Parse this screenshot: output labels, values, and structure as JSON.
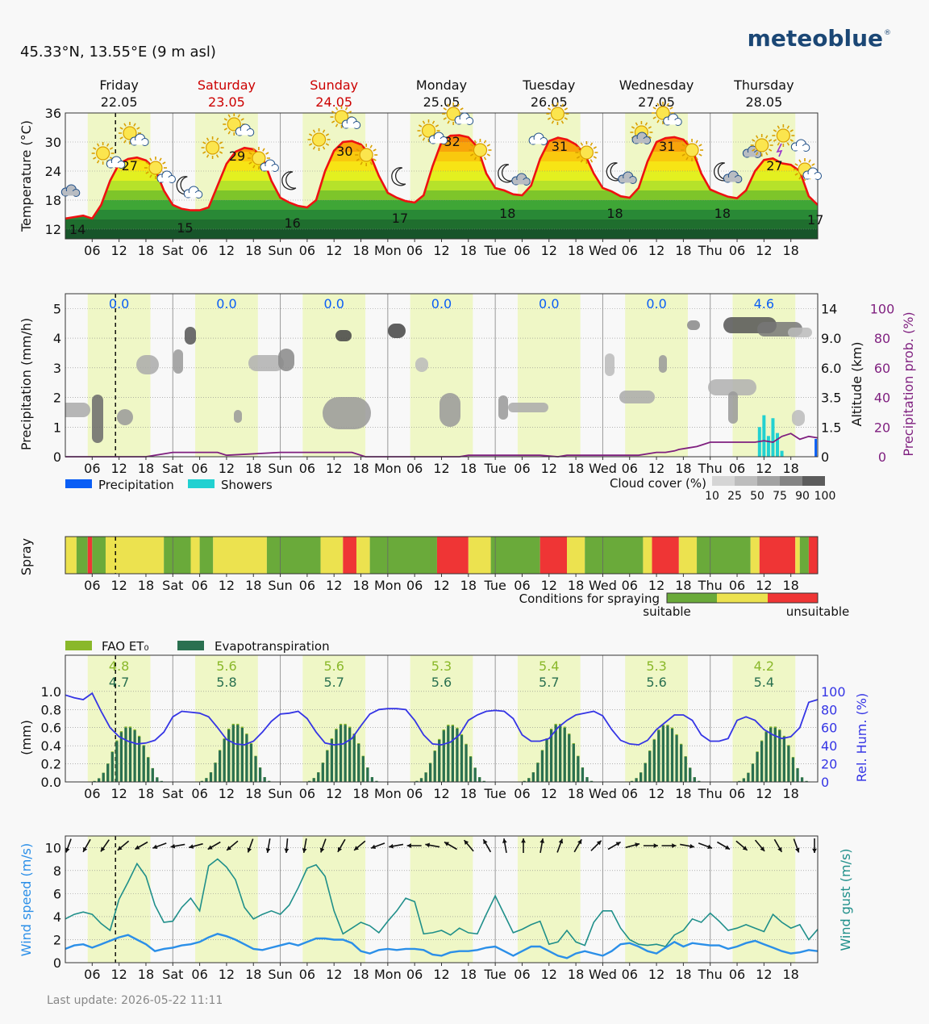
{
  "header": {
    "location": "45.33°N, 13.55°E (9 m asl)",
    "brand": "meteoblue",
    "brand_mark": "®",
    "footer": "Last update: 2026-05-22 11:11"
  },
  "colors": {
    "background": "#f8f8f8",
    "daylight": "#eff7c6",
    "weekend_red": "#cc0000",
    "temperature_line": "#ee1111",
    "precip_prob": "#7f1f7f",
    "precipitation": "#0a5ef5",
    "showers": "#22d1d1",
    "spray_suitable": "#6aaa3a",
    "spray_marginal": "#ece24f",
    "spray_unsuitable": "#ef3535",
    "fao": "#8ab82a",
    "evapo": "#2a7050",
    "humidity": "#3535e5",
    "wind_speed": "#2b8fe8",
    "wind_gust": "#1f8f8a",
    "brand": "#1b4775"
  },
  "chart_data": [
    {
      "type": "line",
      "id": "temperature",
      "ylabel": "Temperature (°C)",
      "ylim": [
        10,
        36
      ],
      "y_ticks": [
        "12",
        "18",
        "24",
        "30",
        "36"
      ],
      "x_ticks": [
        "06",
        "12",
        "18",
        "Sat",
        "06",
        "12",
        "18",
        "Sun",
        "06",
        "12",
        "18",
        "Mon",
        "06",
        "12",
        "18",
        "Tue",
        "06",
        "12",
        "18",
        "Wed",
        "06",
        "12",
        "18",
        "Thu",
        "06",
        "12",
        "18"
      ],
      "days": [
        {
          "name": "Friday",
          "date": "22.05",
          "weekend": false,
          "max": "27",
          "min": "14"
        },
        {
          "name": "Saturday",
          "date": "23.05",
          "weekend": true,
          "max": "29",
          "min": "15"
        },
        {
          "name": "Sunday",
          "date": "24.05",
          "weekend": true,
          "max": "30",
          "min": "16"
        },
        {
          "name": "Monday",
          "date": "25.05",
          "weekend": false,
          "max": "32",
          "min": "17"
        },
        {
          "name": "Tuesday",
          "date": "26.05",
          "weekend": false,
          "max": "31",
          "min": "18"
        },
        {
          "name": "Wednesday",
          "date": "27.05",
          "weekend": false,
          "max": "31",
          "min": "18"
        },
        {
          "name": "Thursday",
          "date": "28.05",
          "weekend": false,
          "max": "27",
          "min": "18"
        }
      ],
      "last_min": "17",
      "x_hours": [
        0,
        2,
        4,
        6,
        8,
        10,
        12,
        14,
        16,
        18,
        20,
        22,
        24,
        26,
        28,
        30,
        32,
        34,
        36,
        38,
        40,
        42,
        44,
        46,
        48,
        50,
        52,
        54,
        56,
        58,
        60,
        62,
        64,
        66,
        68,
        70,
        72,
        74,
        76,
        78,
        80,
        82,
        84,
        86,
        88,
        90,
        92,
        94,
        96,
        98,
        100,
        102,
        104,
        106,
        108,
        110,
        112,
        114,
        116,
        118,
        120,
        122,
        124,
        126,
        128,
        130,
        132,
        134,
        136,
        138,
        140,
        142,
        144,
        146,
        148,
        150,
        152,
        154,
        156,
        158,
        160,
        162,
        164,
        166,
        168
      ],
      "values": [
        14.2,
        14.5,
        14.8,
        14.2,
        17,
        22,
        25.5,
        26.5,
        26.8,
        26.2,
        24.5,
        20,
        17,
        16.2,
        15.9,
        15.9,
        16.5,
        21,
        25.5,
        28,
        28.8,
        28.5,
        27,
        22,
        18.5,
        17.5,
        16.8,
        16.5,
        18,
        24,
        28.2,
        30,
        30.2,
        29.5,
        27.5,
        23,
        19.5,
        18.5,
        17.8,
        17.5,
        19,
        25,
        30,
        31.3,
        31.4,
        31,
        29,
        23.5,
        20.5,
        20,
        19.2,
        19,
        21,
        26.5,
        30.2,
        30.9,
        30.5,
        29.5,
        27.5,
        23.5,
        20.5,
        19.8,
        18.8,
        18.5,
        20.5,
        26,
        30,
        30.8,
        31,
        30.5,
        28.5,
        23.5,
        20.2,
        19.4,
        18.7,
        18.4,
        20,
        24,
        26.3,
        26.6,
        25.6,
        25.3,
        24,
        18.8,
        17
      ]
    },
    {
      "type": "line",
      "id": "precipitation",
      "ylabel": "Precipitation (mm/h)",
      "ylim": [
        0,
        5.5
      ],
      "y_ticks": [
        "0",
        "1",
        "2",
        "3",
        "4",
        "5"
      ],
      "altitude_label": "Altitude (km)",
      "altitude_ticks": [
        "0",
        "1.5",
        "3.5",
        "6.0",
        "9.0",
        "14"
      ],
      "prob_label": "Precipitation prob. (%)",
      "prob_ticks": [
        "0",
        "20",
        "40",
        "60",
        "80",
        "100"
      ],
      "daily_totals": [
        "0.0",
        "0.0",
        "0.0",
        "0.0",
        "0.0",
        "0.0",
        "4.6"
      ],
      "legend_precip": "Precipitation",
      "legend_showers": "Showers",
      "cloud_cover_label": "Cloud cover (%)",
      "cloud_cover_ticks": [
        "10",
        "25",
        "50",
        "75",
        "90",
        "100"
      ],
      "prob_hours": [
        0,
        18,
        24,
        34,
        36,
        48,
        50,
        64,
        67,
        78,
        88,
        90,
        106,
        110,
        112,
        120,
        128,
        132,
        134,
        136,
        137,
        139,
        141,
        142,
        144,
        146,
        148,
        150,
        152,
        154,
        156,
        158,
        160,
        162,
        164,
        166,
        168
      ],
      "prob_values": [
        0,
        0,
        3,
        3,
        1,
        3,
        3,
        3,
        0,
        0,
        0,
        1,
        1,
        0,
        1,
        1,
        1,
        3,
        3,
        4,
        5,
        6,
        7,
        8,
        10,
        10,
        10,
        10,
        10,
        10,
        11,
        10,
        14,
        16,
        12,
        14,
        13
      ],
      "shower_hours": [
        155,
        156,
        157,
        158,
        159,
        160
      ],
      "shower_values": [
        1.0,
        1.4,
        0.7,
        1.3,
        0.8,
        0.2
      ]
    },
    {
      "type": "bar",
      "id": "spray",
      "ylabel": "Spray",
      "caption": "Conditions for spraying",
      "suitable_label": "suitable",
      "unsuitable_label": "unsuitable",
      "segments": [
        [
          0,
          "m"
        ],
        [
          2.5,
          "s"
        ],
        [
          5,
          "u"
        ],
        [
          6,
          "s"
        ],
        [
          9,
          "m"
        ],
        [
          22,
          "s"
        ],
        [
          28,
          "m"
        ],
        [
          30,
          "s"
        ],
        [
          33,
          "m"
        ],
        [
          45,
          "s"
        ],
        [
          57,
          "m"
        ],
        [
          62,
          "u"
        ],
        [
          65,
          "m"
        ],
        [
          68,
          "s"
        ],
        [
          83,
          "u"
        ],
        [
          90,
          "m"
        ],
        [
          95,
          "s"
        ],
        [
          106,
          "u"
        ],
        [
          112,
          "m"
        ],
        [
          116,
          "s"
        ],
        [
          129,
          "m"
        ],
        [
          131,
          "u"
        ],
        [
          137,
          "m"
        ],
        [
          141,
          "s"
        ],
        [
          153,
          "m"
        ],
        [
          155,
          "u"
        ],
        [
          163,
          "m"
        ],
        [
          164,
          "s"
        ],
        [
          166,
          "u"
        ]
      ]
    },
    {
      "type": "bar",
      "id": "evapotranspiration",
      "ylabel": "(mm)",
      "ylim": [
        0,
        1.0
      ],
      "y_ticks": [
        "0.0",
        "0.2",
        "0.4",
        "0.6",
        "0.8",
        "1.0"
      ],
      "humidity_label": "Rel. Hum. (%)",
      "humidity_ticks": [
        "0",
        "20",
        "40",
        "60",
        "80",
        "100"
      ],
      "legend_fao": "FAO ET₀",
      "legend_evapo": "Evapotranspiration",
      "fao_daily": [
        "4.8",
        "5.6",
        "5.6",
        "5.3",
        "5.4",
        "5.3",
        "4.2"
      ],
      "evapo_daily": [
        "4.7",
        "5.8",
        "5.7",
        "5.6",
        "5.7",
        "5.6",
        "5.4"
      ],
      "bar_hourly_profile": [
        0,
        0,
        0,
        0,
        0,
        0,
        0.01,
        0.04,
        0.1,
        0.2,
        0.33,
        0.45,
        0.55,
        0.6,
        0.6,
        0.57,
        0.5,
        0.4,
        0.27,
        0.15,
        0.05,
        0.01,
        0,
        0
      ],
      "day_peaks": [
        0.6,
        0.63,
        0.63,
        0.62,
        0.63,
        0.62,
        0.6
      ],
      "humidity_hours": [
        0,
        2,
        4,
        6,
        8,
        10,
        12,
        14,
        16,
        18,
        20,
        22,
        24,
        26,
        28,
        30,
        32,
        34,
        36,
        38,
        40,
        42,
        44,
        46,
        48,
        50,
        52,
        54,
        56,
        58,
        60,
        62,
        64,
        66,
        68,
        70,
        72,
        74,
        76,
        78,
        80,
        82,
        84,
        86,
        88,
        90,
        92,
        94,
        96,
        98,
        100,
        102,
        104,
        106,
        108,
        110,
        112,
        114,
        116,
        118,
        120,
        122,
        124,
        126,
        128,
        130,
        132,
        134,
        136,
        138,
        140,
        142,
        144,
        146,
        148,
        150,
        152,
        154,
        156,
        158,
        160,
        162,
        164,
        166,
        168
      ],
      "humidity_values": [
        96,
        93,
        91,
        98,
        78,
        60,
        50,
        45,
        42,
        43,
        46,
        55,
        72,
        78,
        77,
        76,
        72,
        60,
        47,
        42,
        41,
        45,
        55,
        67,
        75,
        76,
        78,
        70,
        55,
        43,
        41,
        42,
        48,
        62,
        75,
        80,
        81,
        81,
        80,
        68,
        52,
        42,
        41,
        44,
        52,
        68,
        74,
        78,
        79,
        78,
        70,
        52,
        45,
        45,
        48,
        60,
        68,
        74,
        76,
        78,
        73,
        58,
        46,
        42,
        41,
        46,
        58,
        66,
        74,
        74,
        68,
        52,
        45,
        45,
        48,
        68,
        72,
        68,
        58,
        52,
        48,
        50,
        60,
        88,
        91
      ]
    },
    {
      "type": "line",
      "id": "wind",
      "ylabel": "Wind speed (m/s)",
      "ylabel_right": "Wind gust (m/s)",
      "ylim": [
        0,
        11
      ],
      "y_ticks": [
        "0",
        "2",
        "4",
        "6",
        "8",
        "10"
      ],
      "x_hours": [
        0,
        2,
        4,
        6,
        8,
        10,
        12,
        14,
        16,
        18,
        20,
        22,
        24,
        26,
        28,
        30,
        32,
        34,
        36,
        38,
        40,
        42,
        44,
        46,
        48,
        50,
        52,
        54,
        56,
        58,
        60,
        62,
        64,
        66,
        68,
        70,
        72,
        74,
        76,
        78,
        80,
        82,
        84,
        86,
        88,
        90,
        92,
        94,
        96,
        98,
        100,
        102,
        104,
        106,
        108,
        110,
        112,
        114,
        116,
        118,
        120,
        122,
        124,
        126,
        128,
        130,
        132,
        134,
        136,
        138,
        140,
        142,
        144,
        146,
        148,
        150,
        152,
        154,
        156,
        158,
        160,
        162,
        164,
        166,
        168
      ],
      "speed": [
        1.2,
        1.5,
        1.6,
        1.3,
        1.6,
        1.9,
        2.2,
        2.4,
        2.0,
        1.6,
        1.0,
        1.2,
        1.3,
        1.5,
        1.6,
        1.8,
        2.2,
        2.5,
        2.3,
        2.0,
        1.6,
        1.2,
        1.1,
        1.3,
        1.5,
        1.7,
        1.5,
        1.8,
        2.1,
        2.1,
        2.0,
        2.0,
        1.7,
        1.0,
        0.8,
        1.1,
        1.2,
        1.1,
        1.2,
        1.2,
        1.1,
        0.7,
        0.6,
        0.9,
        1.0,
        1.0,
        1.1,
        1.3,
        1.4,
        1.0,
        0.6,
        1.0,
        1.4,
        1.4,
        1.0,
        0.6,
        0.4,
        0.8,
        1.0,
        0.8,
        0.6,
        1.0,
        1.6,
        1.7,
        1.4,
        1.0,
        0.8,
        1.3,
        1.8,
        1.4,
        1.7,
        1.6,
        1.5,
        1.5,
        1.2,
        1.4,
        1.7,
        1.9,
        1.6,
        1.3,
        1.0,
        0.8,
        0.9,
        1.1,
        1.0
      ],
      "gust": [
        3.8,
        4.2,
        4.4,
        4.2,
        3.4,
        2.8,
        5.5,
        7.0,
        8.6,
        7.5,
        5.0,
        3.5,
        3.6,
        4.8,
        5.6,
        4.5,
        8.4,
        9.0,
        8.3,
        7.2,
        4.8,
        3.8,
        4.2,
        4.5,
        4.2,
        5.0,
        6.5,
        8.2,
        8.5,
        7.5,
        4.5,
        2.5,
        3.0,
        3.5,
        3.2,
        2.6,
        3.6,
        4.5,
        5.6,
        5.3,
        2.5,
        2.6,
        2.8,
        2.4,
        3.0,
        2.6,
        2.5,
        4.2,
        5.8,
        4.2,
        2.6,
        2.9,
        3.3,
        3.6,
        1.6,
        1.8,
        2.8,
        1.8,
        1.5,
        3.5,
        4.5,
        4.5,
        3.0,
        2.0,
        1.6,
        1.5,
        1.6,
        1.4,
        2.4,
        2.8,
        3.8,
        3.5,
        4.3,
        3.6,
        2.8,
        3.0,
        3.3,
        3.0,
        2.7,
        4.2,
        3.5,
        3.0,
        3.3,
        2.0,
        2.9
      ]
    }
  ]
}
